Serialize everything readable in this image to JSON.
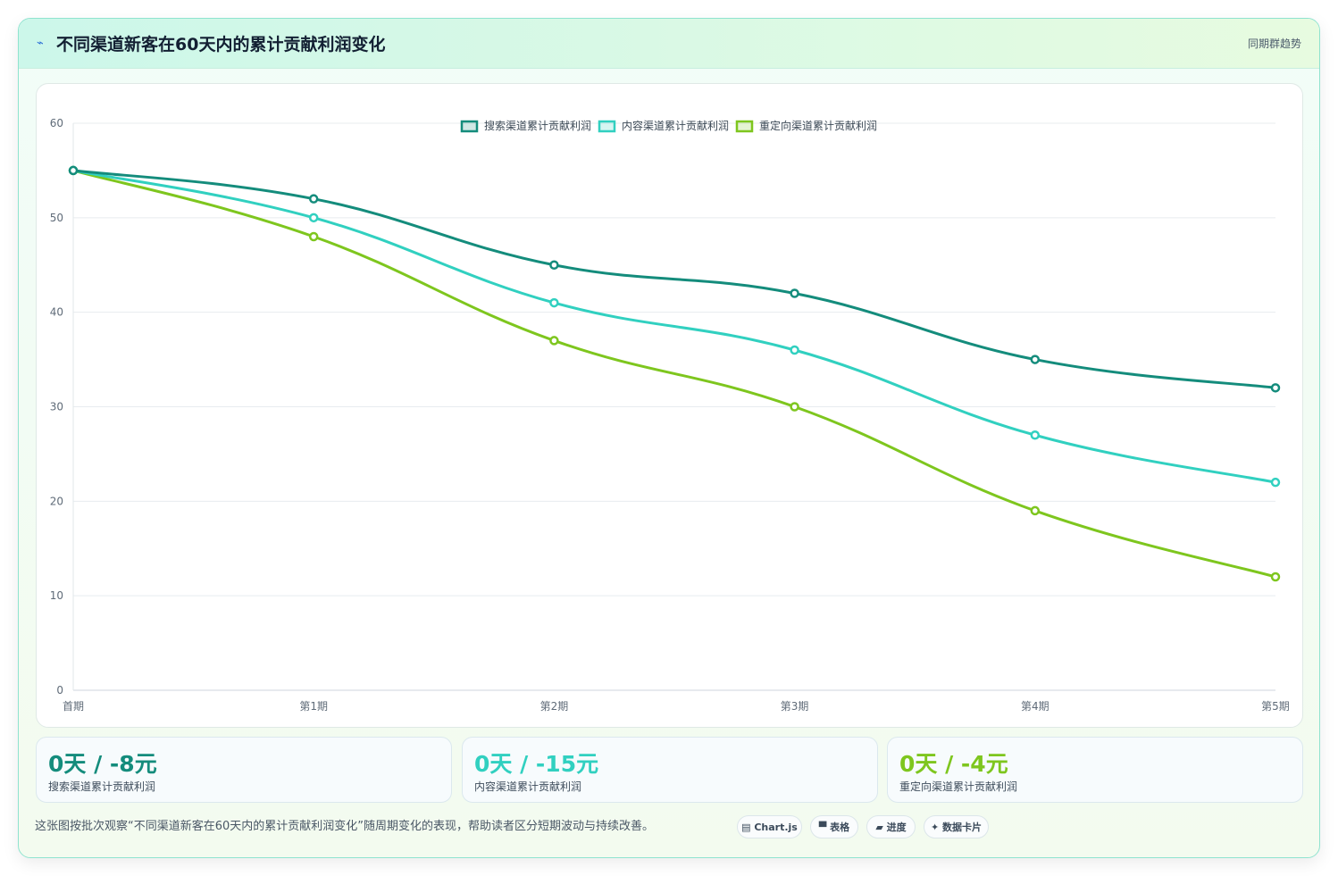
{
  "header": {
    "icon": "chart-line-icon",
    "icon_glyph": "⌁",
    "title": "不同渠道新客在60天内的累计贡献利润变化",
    "badge": "同期群趋势"
  },
  "chart_data": {
    "type": "line",
    "categories": [
      "首期",
      "第1期",
      "第2期",
      "第3期",
      "第4期",
      "第5期"
    ],
    "series": [
      {
        "name": "搜索渠道累计贡献利润",
        "values": [
          55,
          52,
          45,
          42,
          35,
          32
        ],
        "color": "#148c7c"
      },
      {
        "name": "内容渠道累计贡献利润",
        "values": [
          55,
          50,
          41,
          36,
          27,
          22
        ],
        "color": "#31d0c0"
      },
      {
        "name": "重定向渠道累计贡献利润",
        "values": [
          55,
          48,
          37,
          30,
          19,
          12
        ],
        "color": "#7ec61e"
      }
    ],
    "ylim": [
      0,
      60
    ],
    "yticks": [
      0,
      10,
      20,
      30,
      40,
      50,
      60
    ],
    "grid": true,
    "legend": "top-center",
    "title": "",
    "xlabel": "",
    "ylabel": ""
  },
  "stats": [
    {
      "value": "0天 / -8元",
      "label": "搜索渠道累计贡献利润",
      "color": "#148c7c"
    },
    {
      "value": "0天 / -15元",
      "label": "内容渠道累计贡献利润",
      "color": "#31d0c0"
    },
    {
      "value": "0天 / -4元",
      "label": "重定向渠道累计贡献利润",
      "color": "#7ec61e"
    }
  ],
  "description": "这张图按批次观察“不同渠道新客在60天内的累计贡献利润变化”随周期变化的表现，帮助读者区分短期波动与持续改善。",
  "chips": [
    {
      "label": "▤ Chart.js",
      "icon": "chart-icon"
    },
    {
      "label": "▀ 表格",
      "icon": "table-icon"
    },
    {
      "label": "▰ 进度",
      "icon": "progress-icon"
    },
    {
      "label": "✦ 数据卡片",
      "icon": "sparkle-icon"
    }
  ]
}
